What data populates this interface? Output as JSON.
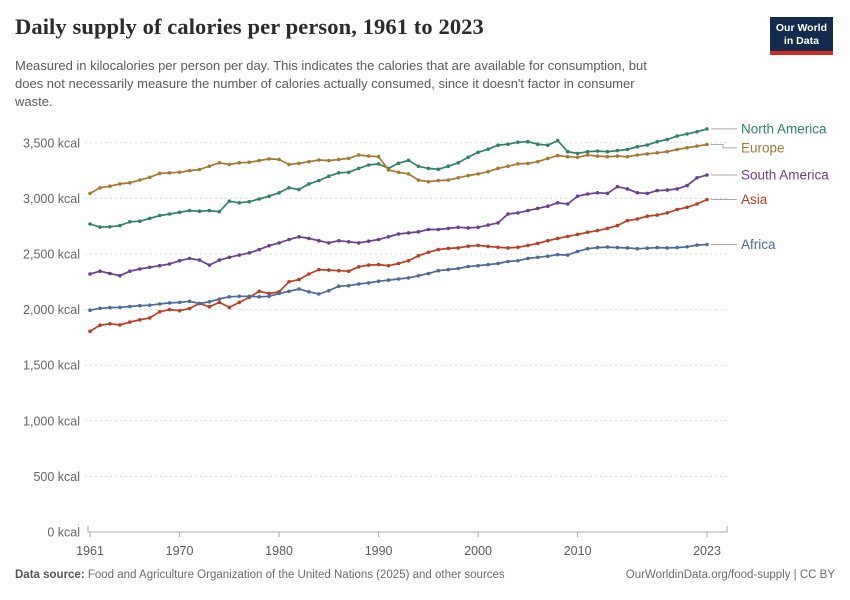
{
  "header": {
    "title": "Daily supply of calories per person, 1961 to 2023",
    "subtitle_lines": [
      "Measured in kilocalories per person per day. This indicates the calories that are available for consumption, but",
      "does not necessarily measure the number of calories actually consumed, since it doesn't factor in consumer",
      "waste."
    ],
    "logo": {
      "line1": "Our World",
      "line2": "in Data",
      "bg_color": "#122B4E",
      "bar_color": "#D42B21"
    }
  },
  "footer": {
    "datasource_label": "Data source:",
    "datasource_text": " Food and Agriculture Organization of the United Nations (2025) and other sources",
    "link_text": "OurWorldinData.org/food-supply | CC BY"
  },
  "chart_data": {
    "type": "line",
    "title": "Daily supply of calories per person, 1961 to 2023",
    "unit": "kcal",
    "grid": "horizontal-dashed",
    "legend_position": "right-of-line-ends",
    "xlim": [
      1961,
      2023
    ],
    "ylim": [
      0,
      3700
    ],
    "x_ticks": [
      1961,
      1970,
      1980,
      1990,
      2000,
      2010,
      2023
    ],
    "y_ticks": [
      0,
      500,
      1000,
      1500,
      2000,
      2500,
      3000,
      3500
    ],
    "y_tick_labels": [
      "0 kcal",
      "500 kcal",
      "1,000 kcal",
      "1,500 kcal",
      "2,000 kcal",
      "2,500 kcal",
      "3,000 kcal",
      "3,500 kcal"
    ],
    "x": [
      1961,
      1962,
      1963,
      1964,
      1965,
      1966,
      1967,
      1968,
      1969,
      1970,
      1971,
      1972,
      1973,
      1974,
      1975,
      1976,
      1977,
      1978,
      1979,
      1980,
      1981,
      1982,
      1983,
      1984,
      1985,
      1986,
      1987,
      1988,
      1989,
      1990,
      1991,
      1992,
      1993,
      1994,
      1995,
      1996,
      1997,
      1998,
      1999,
      2000,
      2001,
      2002,
      2003,
      2004,
      2005,
      2006,
      2007,
      2008,
      2009,
      2010,
      2011,
      2012,
      2013,
      2014,
      2015,
      2016,
      2017,
      2018,
      2019,
      2020,
      2021,
      2022,
      2023
    ],
    "series": [
      {
        "id": "north-america",
        "name": "North America",
        "color": "#2C8465",
        "values": [
          2770,
          2742,
          2745,
          2755,
          2790,
          2795,
          2820,
          2845,
          2860,
          2875,
          2890,
          2885,
          2890,
          2880,
          2975,
          2960,
          2970,
          2995,
          3020,
          3050,
          3095,
          3080,
          3130,
          3160,
          3200,
          3230,
          3235,
          3270,
          3300,
          3310,
          3270,
          3316,
          3343,
          3289,
          3270,
          3262,
          3290,
          3320,
          3370,
          3415,
          3442,
          3478,
          3487,
          3505,
          3510,
          3487,
          3478,
          3520,
          3420,
          3405,
          3420,
          3425,
          3420,
          3430,
          3440,
          3465,
          3480,
          3510,
          3530,
          3560,
          3580,
          3600,
          3625
        ]
      },
      {
        "id": "europe",
        "name": "Europe",
        "color": "#A7792F",
        "values": [
          3045,
          3095,
          3110,
          3130,
          3140,
          3165,
          3190,
          3225,
          3230,
          3235,
          3250,
          3260,
          3290,
          3320,
          3305,
          3320,
          3325,
          3340,
          3355,
          3350,
          3305,
          3315,
          3330,
          3345,
          3340,
          3350,
          3360,
          3390,
          3380,
          3375,
          3255,
          3235,
          3220,
          3165,
          3150,
          3160,
          3165,
          3185,
          3205,
          3220,
          3240,
          3270,
          3290,
          3310,
          3315,
          3330,
          3360,
          3385,
          3375,
          3370,
          3390,
          3380,
          3375,
          3380,
          3375,
          3390,
          3400,
          3410,
          3420,
          3440,
          3455,
          3470,
          3485
        ]
      },
      {
        "id": "south-america",
        "name": "South America",
        "color": "#6D3E91",
        "values": [
          2320,
          2345,
          2325,
          2305,
          2345,
          2365,
          2380,
          2395,
          2410,
          2440,
          2460,
          2445,
          2400,
          2445,
          2470,
          2490,
          2510,
          2540,
          2575,
          2600,
          2630,
          2655,
          2640,
          2620,
          2600,
          2620,
          2610,
          2600,
          2615,
          2630,
          2655,
          2680,
          2690,
          2700,
          2720,
          2720,
          2730,
          2740,
          2735,
          2740,
          2760,
          2780,
          2860,
          2870,
          2890,
          2910,
          2930,
          2960,
          2950,
          3020,
          3040,
          3050,
          3045,
          3105,
          3085,
          3050,
          3045,
          3070,
          3075,
          3085,
          3115,
          3185,
          3210
        ]
      },
      {
        "id": "asia",
        "name": "Asia",
        "color": "#BC3D22",
        "values": [
          1805,
          1860,
          1872,
          1862,
          1888,
          1908,
          1925,
          1980,
          2000,
          1990,
          2010,
          2055,
          2025,
          2065,
          2020,
          2065,
          2110,
          2165,
          2145,
          2160,
          2250,
          2270,
          2320,
          2360,
          2355,
          2350,
          2345,
          2385,
          2400,
          2405,
          2395,
          2415,
          2440,
          2485,
          2515,
          2540,
          2550,
          2555,
          2570,
          2577,
          2568,
          2560,
          2555,
          2560,
          2577,
          2595,
          2620,
          2640,
          2658,
          2676,
          2695,
          2710,
          2730,
          2755,
          2800,
          2815,
          2840,
          2850,
          2870,
          2900,
          2920,
          2950,
          2990
        ]
      },
      {
        "id": "africa",
        "name": "Africa",
        "color": "#4C6A9C",
        "values": [
          1995,
          2012,
          2018,
          2020,
          2028,
          2035,
          2040,
          2050,
          2060,
          2065,
          2075,
          2055,
          2070,
          2095,
          2115,
          2120,
          2120,
          2115,
          2120,
          2145,
          2165,
          2185,
          2160,
          2140,
          2170,
          2210,
          2215,
          2230,
          2240,
          2255,
          2265,
          2275,
          2285,
          2305,
          2325,
          2350,
          2360,
          2370,
          2388,
          2395,
          2405,
          2415,
          2433,
          2440,
          2460,
          2470,
          2480,
          2495,
          2490,
          2523,
          2548,
          2558,
          2562,
          2558,
          2555,
          2548,
          2552,
          2558,
          2555,
          2558,
          2565,
          2580,
          2585
        ]
      }
    ]
  }
}
